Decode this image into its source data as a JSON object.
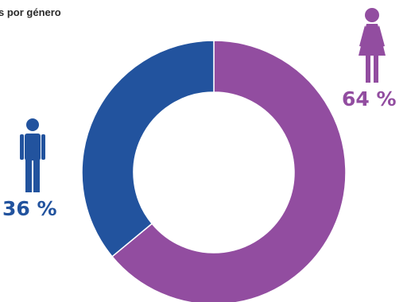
{
  "title": "s por género",
  "chart_data": {
    "type": "pie",
    "variant": "donut",
    "slices": [
      {
        "label": "64 %",
        "value": 64,
        "color": "#924da0",
        "icon": "woman-icon"
      },
      {
        "label": "36 %",
        "value": 36,
        "color": "#22539e",
        "icon": "man-icon"
      }
    ]
  }
}
